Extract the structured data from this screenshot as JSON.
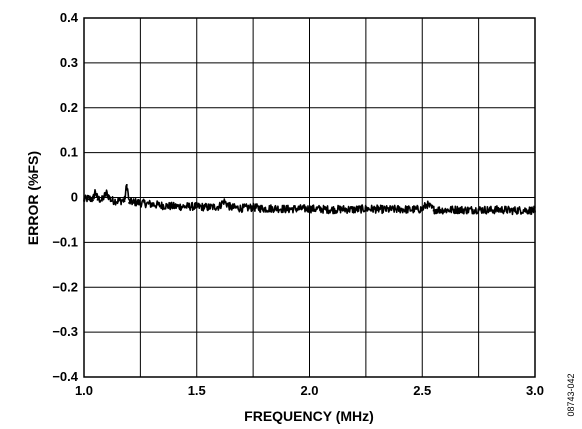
{
  "chart_data": {
    "type": "line",
    "title": "",
    "xlabel": "FREQUENCY (MHz)",
    "ylabel": "ERROR (%FS)",
    "xlim": [
      1.0,
      3.0
    ],
    "ylim": [
      -0.4,
      0.4
    ],
    "x_ticks": [
      1.0,
      1.25,
      1.5,
      1.75,
      2.0,
      2.25,
      2.5,
      2.75,
      3.0
    ],
    "x_tick_labels": [
      "1.0",
      "",
      "1.5",
      "",
      "2.0",
      "",
      "2.5",
      "",
      "3.0"
    ],
    "y_ticks": [
      -0.4,
      -0.3,
      -0.2,
      -0.1,
      0,
      0.1,
      0.2,
      0.3,
      0.4
    ],
    "y_tick_labels": [
      "−0.4",
      "−0.3",
      "−0.2",
      "−0.1",
      "0",
      "0.1",
      "0.2",
      "0.3",
      "0.4"
    ],
    "grid": true,
    "legend": "none",
    "series": [
      {
        "color": "#000000",
        "x": [
          1.0,
          1.02,
          1.04,
          1.05,
          1.06,
          1.08,
          1.1,
          1.12,
          1.15,
          1.18,
          1.19,
          1.2,
          1.22,
          1.25,
          1.3,
          1.35,
          1.4,
          1.45,
          1.5,
          1.55,
          1.6,
          1.62,
          1.65,
          1.7,
          1.75,
          1.8,
          1.85,
          1.9,
          1.95,
          2.0,
          2.05,
          2.1,
          2.15,
          2.2,
          2.25,
          2.3,
          2.35,
          2.4,
          2.45,
          2.5,
          2.52,
          2.55,
          2.6,
          2.65,
          2.7,
          2.75,
          2.8,
          2.85,
          2.9,
          2.95,
          3.0
        ],
        "y": [
          -0.005,
          -0.002,
          -0.004,
          0.015,
          -0.003,
          -0.005,
          0.01,
          -0.006,
          -0.008,
          -0.006,
          0.03,
          -0.01,
          -0.01,
          -0.012,
          -0.015,
          -0.018,
          -0.02,
          -0.02,
          -0.02,
          -0.022,
          -0.02,
          -0.008,
          -0.022,
          -0.024,
          -0.022,
          -0.025,
          -0.024,
          -0.026,
          -0.025,
          -0.025,
          -0.026,
          -0.027,
          -0.026,
          -0.027,
          -0.025,
          -0.026,
          -0.027,
          -0.026,
          -0.027,
          -0.026,
          -0.015,
          -0.027,
          -0.028,
          -0.027,
          -0.028,
          -0.027,
          -0.028,
          -0.027,
          -0.029,
          -0.028,
          -0.029
        ]
      }
    ]
  },
  "figure_id": "08743-042"
}
